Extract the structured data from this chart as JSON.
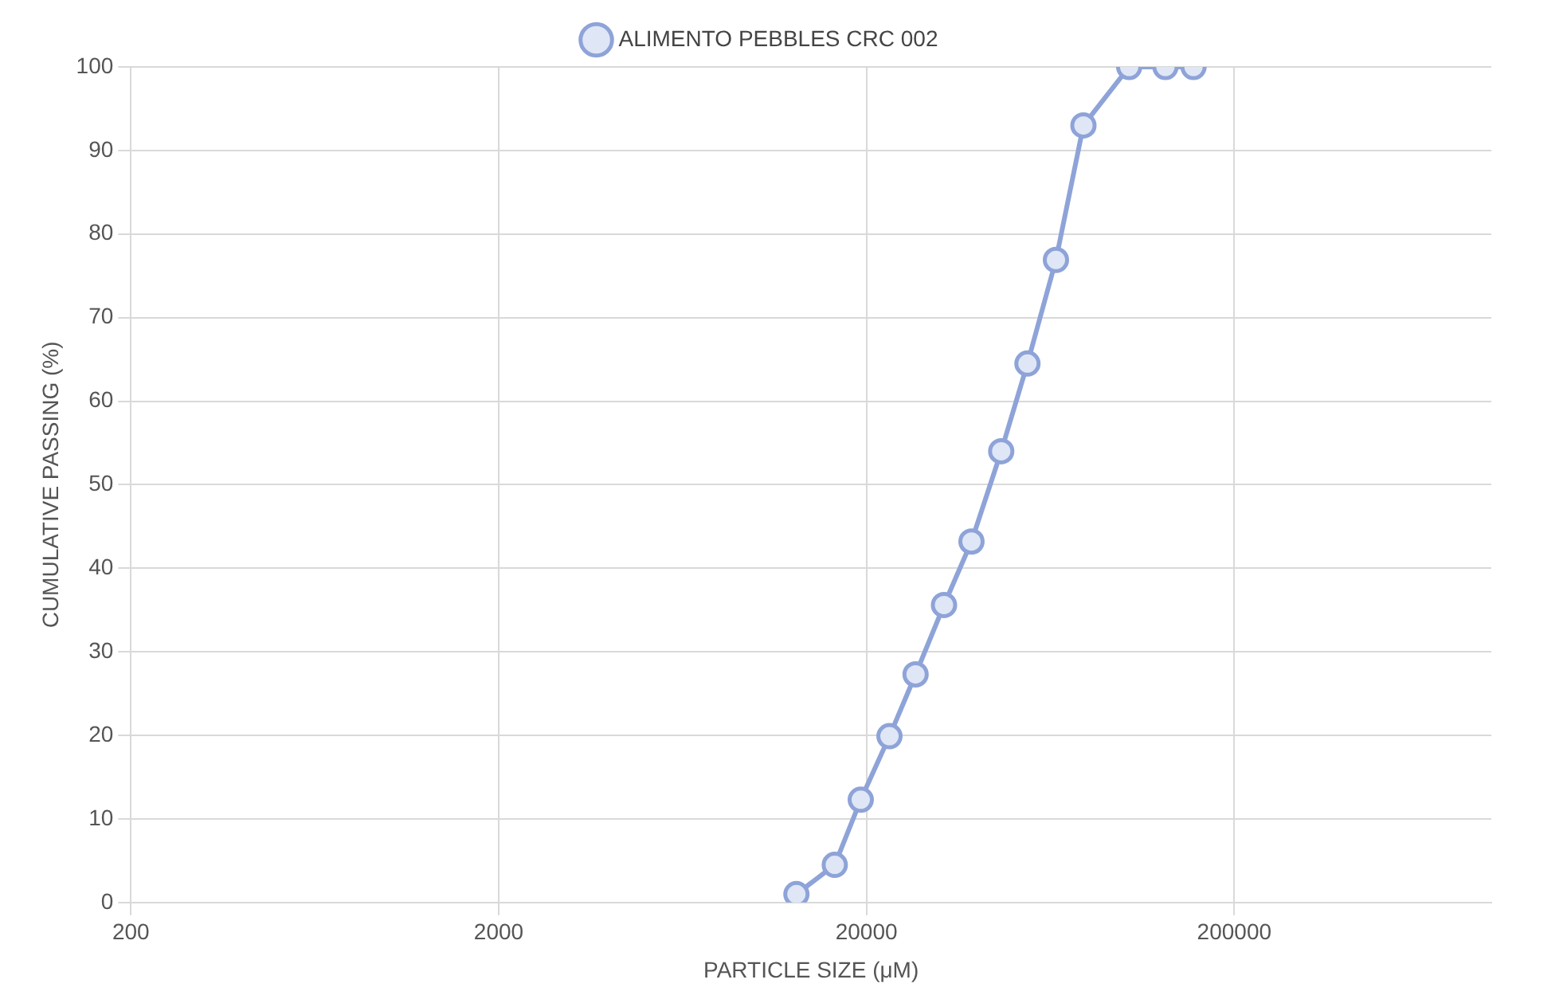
{
  "chart_data": {
    "type": "line",
    "xlabel": "PARTICLE SIZE (μM)",
    "ylabel": "CUMULATIVE PASSING (%)",
    "log": "x",
    "xlim": [
      200,
      1000000
    ],
    "xticks": [
      200,
      2000,
      20000,
      200000
    ],
    "ylim": [
      0,
      100
    ],
    "yticks": [
      0,
      10,
      20,
      30,
      40,
      50,
      60,
      70,
      80,
      90,
      100
    ],
    "grid": true,
    "legend": "top",
    "marker": "circle",
    "line_style": "solid",
    "series": [
      {
        "name": "ALIMENTO PEBBLES CRC 002",
        "color": "#8ea3d8",
        "x": [
          12900,
          16400,
          19300,
          23100,
          27200,
          32500,
          38600,
          46500,
          54800,
          65500,
          77800,
          103600,
          130000,
          155000
        ],
        "values": [
          1,
          4.5,
          12.3,
          19.9,
          27.3,
          35.6,
          43.2,
          54,
          64.5,
          76.9,
          93,
          100,
          100,
          100
        ]
      }
    ]
  }
}
